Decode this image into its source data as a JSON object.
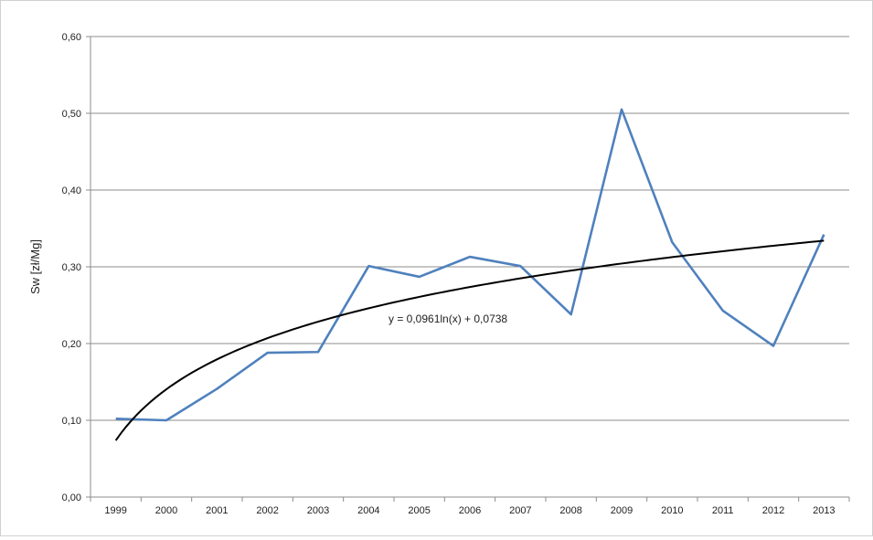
{
  "chart_data": {
    "type": "line",
    "categories": [
      "1999",
      "2000",
      "2001",
      "2002",
      "2003",
      "2004",
      "2005",
      "2006",
      "2007",
      "2008",
      "2009",
      "2010",
      "2011",
      "2012",
      "2013"
    ],
    "series": [
      {
        "values": [
          0.102,
          0.1,
          0.141,
          0.188,
          0.189,
          0.301,
          0.287,
          0.313,
          0.301,
          0.238,
          0.505,
          0.332,
          0.243,
          0.197,
          0.342
        ],
        "color": "#4f81bd"
      }
    ],
    "trendline": {
      "type": "logarithmic",
      "a": 0.0961,
      "b": 0.0738,
      "equation": "y = 0,0961ln(x) + 0,0738",
      "color": "#000000"
    },
    "title": "",
    "xlabel": "",
    "ylabel": "Sw  [zł/Mg]",
    "ylim": [
      0,
      0.6
    ],
    "yticks": [
      "0,00",
      "0,10",
      "0,20",
      "0,30",
      "0,40",
      "0,50",
      "0,60"
    ],
    "grid": "horizontal"
  }
}
